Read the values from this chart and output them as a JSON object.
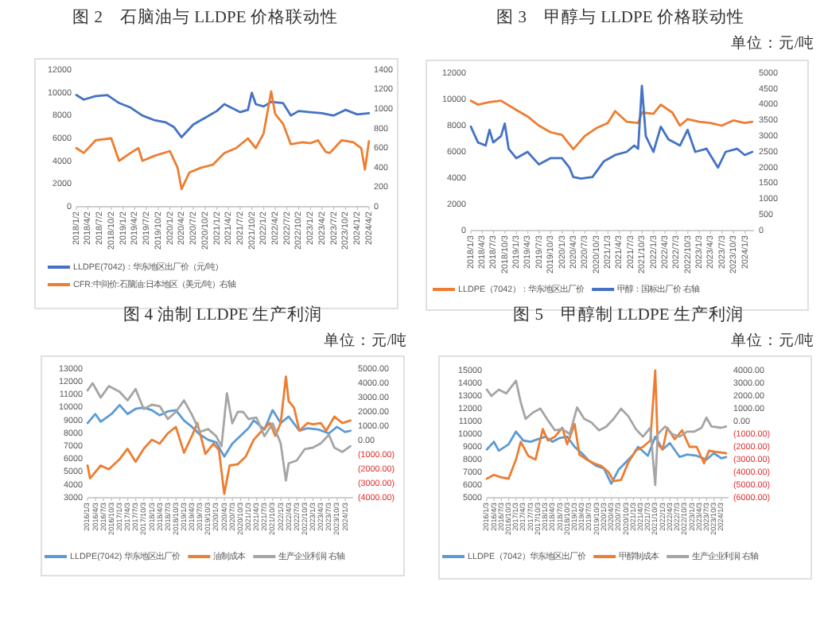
{
  "chart_data": [
    {
      "type": "line",
      "title": "图 2　石脑油与 LLDPE 价格联动性",
      "legend": "bottom",
      "xlim": [
        "2018-01-02",
        "2024-04-02"
      ],
      "ylim": [
        0,
        12000
      ],
      "yticks": [
        0,
        2000,
        4000,
        6000,
        8000,
        10000,
        12000
      ],
      "y2lim": [
        0,
        1400
      ],
      "y2ticks": [
        0,
        200,
        400,
        600,
        800,
        1000,
        1200,
        1400
      ],
      "xticks": [
        {
          "value": "2018-01-02",
          "label": "2018/1/2"
        },
        {
          "value": "2018-04-02",
          "label": "2018/4/2"
        },
        {
          "value": "2018-07-02",
          "label": "2018/7/2"
        },
        {
          "value": "2018-10-02",
          "label": "2018/10/2"
        },
        {
          "value": "2019-01-02",
          "label": "2019/1/2"
        },
        {
          "value": "2019-04-02",
          "label": "2019/4/2"
        },
        {
          "value": "2019-07-02",
          "label": "2019/7/2"
        },
        {
          "value": "2019-10-02",
          "label": "2019/10/2"
        },
        {
          "value": "2020-01-02",
          "label": "2020/1/2"
        },
        {
          "value": "2020-04-02",
          "label": "2020/4/2"
        },
        {
          "value": "2020-07-02",
          "label": "2020/7/2"
        },
        {
          "value": "2020-10-02",
          "label": "2020/10/2"
        },
        {
          "value": "2021-01-02",
          "label": "2021/1/2"
        },
        {
          "value": "2021-04-02",
          "label": "2021/4/2"
        },
        {
          "value": "2021-07-02",
          "label": "2021/7/2"
        },
        {
          "value": "2021-10-02",
          "label": "2021/10/2"
        },
        {
          "value": "2022-01-02",
          "label": "2022/1/2"
        },
        {
          "value": "2022-04-02",
          "label": "2022/4/2"
        },
        {
          "value": "2022-07-02",
          "label": "2022/7/2"
        },
        {
          "value": "2022-10-02",
          "label": "2022/10/2"
        },
        {
          "value": "2023-01-02",
          "label": "2023/1/2"
        },
        {
          "value": "2023-04-02",
          "label": "2023/4/2"
        },
        {
          "value": "2023-07-02",
          "label": "2023/7/2"
        },
        {
          "value": "2023-10-02",
          "label": "2023/10/2"
        },
        {
          "value": "2024-01-02",
          "label": "2024/1/2"
        },
        {
          "value": "2024-04-02",
          "label": "2024/4/2"
        }
      ],
      "series": [
        {
          "name": "LLDPE(7042)：华东地区出厂价（元/吨）",
          "color": "#4472c4",
          "x": [
            "2018-01-02",
            "2018-03",
            "2018-06",
            "2018-09",
            "2018-12",
            "2019-03",
            "2019-06",
            "2019-09",
            "2019-12",
            "2020-02",
            "2020-04",
            "2020-07",
            "2020-10",
            "2021-01",
            "2021-03",
            "2021-07",
            "2021-09",
            "2021-10",
            "2021-11",
            "2022-01",
            "2022-03",
            "2022-06",
            "2022-08",
            "2022-10",
            "2023-01",
            "2023-04",
            "2023-07",
            "2023-10",
            "2024-01",
            "2024-04"
          ],
          "values": [
            9800,
            9400,
            9700,
            9800,
            9100,
            8700,
            8000,
            7600,
            7400,
            7000,
            6100,
            7200,
            7800,
            8400,
            9000,
            8300,
            8500,
            10000,
            9000,
            8800,
            9200,
            9100,
            8000,
            8400,
            8300,
            8200,
            8000,
            8500,
            8100,
            8200
          ]
        },
        {
          "name": "CFR:中间价:石脑油:日本地区（美元/吨）右轴",
          "color": "#ed7d31",
          "axis": "y2",
          "x": [
            "2018-01-02",
            "2018-03",
            "2018-06",
            "2018-10",
            "2018-12",
            "2019-03",
            "2019-05",
            "2019-06",
            "2019-09",
            "2020-01",
            "2020-03",
            "2020-04",
            "2020-06",
            "2020-09",
            "2020-12",
            "2021-03",
            "2021-06",
            "2021-09",
            "2021-11",
            "2022-01",
            "2022-03",
            "2022-04",
            "2022-06",
            "2022-08",
            "2022-11",
            "2023-01",
            "2023-03",
            "2023-05",
            "2023-06",
            "2023-09",
            "2023-12",
            "2024-02",
            "2024-03",
            "2024-04"
          ],
          "values": [
            600,
            550,
            680,
            700,
            470,
            550,
            600,
            470,
            520,
            570,
            400,
            180,
            350,
            400,
            430,
            550,
            600,
            700,
            600,
            750,
            1180,
            950,
            850,
            640,
            660,
            650,
            680,
            560,
            550,
            680,
            660,
            600,
            380,
            670
          ]
        }
      ]
    },
    {
      "type": "line",
      "title": "图 3　甲醇与 LLDPE 价格联动性",
      "subtitle": "单位：元/吨",
      "legend": "bottom",
      "xlim": [
        "2018-01-03",
        "2024-03-15"
      ],
      "ylim": [
        0,
        12000
      ],
      "yticks": [
        0,
        2000,
        4000,
        6000,
        8000,
        10000,
        12000
      ],
      "y2lim": [
        0,
        5000
      ],
      "y2ticks": [
        0,
        500,
        1000,
        1500,
        2000,
        2500,
        3000,
        3500,
        4000,
        4500,
        5000
      ],
      "xticks": [
        {
          "value": "2018-01-03",
          "label": "2018/1/3"
        },
        {
          "value": "2018-04-03",
          "label": "2018/4/3"
        },
        {
          "value": "2018-07-03",
          "label": "2018/7/3"
        },
        {
          "value": "2018-10-03",
          "label": "2018/10/3"
        },
        {
          "value": "2019-01-03",
          "label": "2019/1/3"
        },
        {
          "value": "2019-04-03",
          "label": "2019/4/3"
        },
        {
          "value": "2019-07-03",
          "label": "2019/7/3"
        },
        {
          "value": "2019-10-03",
          "label": "2019/10/3"
        },
        {
          "value": "2020-01-03",
          "label": "2020/1/3"
        },
        {
          "value": "2020-04-03",
          "label": "2020/4/3"
        },
        {
          "value": "2020-07-03",
          "label": "2020/7/3"
        },
        {
          "value": "2020-10-03",
          "label": "2020/10/3"
        },
        {
          "value": "2021-01-03",
          "label": "2021/1/3"
        },
        {
          "value": "2021-04-03",
          "label": "2021/4/3"
        },
        {
          "value": "2021-07-03",
          "label": "2021/7/3"
        },
        {
          "value": "2021-10-03",
          "label": "2021/10/3"
        },
        {
          "value": "2022-01-03",
          "label": "2022/1/3"
        },
        {
          "value": "2022-04-03",
          "label": "2022/4/3"
        },
        {
          "value": "2022-07-03",
          "label": "2022/7/3"
        },
        {
          "value": "2022-10-03",
          "label": "2022/10/3"
        },
        {
          "value": "2023-01-03",
          "label": "2023/1/3"
        },
        {
          "value": "2023-04-03",
          "label": "2023/4/3"
        },
        {
          "value": "2023-07-03",
          "label": "2023/7/3"
        },
        {
          "value": "2023-10-03",
          "label": "2023/10/3"
        },
        {
          "value": "2024-01-03",
          "label": "2024/1/3"
        }
      ],
      "series": [
        {
          "name": "LLDPE（7042）：华东地区出厂价",
          "color": "#ed7d31",
          "x": [
            "2018-01-03",
            "2018-03",
            "2018-06",
            "2018-09",
            "2019-01",
            "2019-04",
            "2019-07",
            "2019-10",
            "2020-01",
            "2020-04",
            "2020-07",
            "2020-10",
            "2021-01",
            "2021-03",
            "2021-06",
            "2021-09",
            "2021-10",
            "2022-01",
            "2022-03",
            "2022-06",
            "2022-08",
            "2022-10",
            "2023-01",
            "2023-04",
            "2023-07",
            "2023-10",
            "2024-01",
            "2024-03"
          ],
          "values": [
            9900,
            9600,
            9800,
            9900,
            9200,
            8700,
            8000,
            7500,
            7300,
            6200,
            7200,
            7800,
            8200,
            9100,
            8300,
            8200,
            9000,
            8900,
            9600,
            9000,
            8000,
            8500,
            8300,
            8200,
            8000,
            8400,
            8200,
            8300
          ]
        },
        {
          "name": "甲醇：国标出厂价 右轴",
          "color": "#4472c4",
          "axis": "y2",
          "x": [
            "2018-01-03",
            "2018-03",
            "2018-05",
            "2018-06",
            "2018-07",
            "2018-09",
            "2018-10",
            "2018-11",
            "2019-01",
            "2019-04",
            "2019-07",
            "2019-10",
            "2020-01",
            "2020-03",
            "2020-04",
            "2020-06",
            "2020-09",
            "2020-12",
            "2021-03",
            "2021-06",
            "2021-08",
            "2021-09",
            "2021-10",
            "2021-11",
            "2022-01",
            "2022-03",
            "2022-05",
            "2022-08",
            "2022-10",
            "2022-12",
            "2023-03",
            "2023-06",
            "2023-08",
            "2023-11",
            "2024-01",
            "2024-03"
          ],
          "values": [
            3300,
            2800,
            2700,
            3200,
            2800,
            3000,
            3400,
            2600,
            2300,
            2500,
            2100,
            2300,
            2300,
            2000,
            1700,
            1650,
            1700,
            2200,
            2400,
            2500,
            2700,
            2600,
            4600,
            3000,
            2500,
            3300,
            2900,
            2700,
            3200,
            2500,
            2600,
            2000,
            2500,
            2600,
            2400,
            2500
          ]
        }
      ]
    },
    {
      "type": "line",
      "title": "图 4 油制 LLDPE 生产利润",
      "subtitle": "单位：元/吨",
      "legend": "bottom",
      "xlim": [
        "2016-01-03",
        "2024-04-01"
      ],
      "ylim": [
        3000,
        13000
      ],
      "yticks": [
        3000,
        4000,
        5000,
        6000,
        7000,
        8000,
        9000,
        10000,
        11000,
        12000,
        13000
      ],
      "y2lim": [
        -4000,
        5000
      ],
      "y2ticks": [
        {
          "value": -4000,
          "label": "(4000.00)"
        },
        {
          "value": -3000,
          "label": "(3000.00)"
        },
        {
          "value": -2000,
          "label": "(2000.00)"
        },
        {
          "value": -1000,
          "label": "(1000.00)"
        },
        {
          "value": 0,
          "label": "0.00"
        },
        {
          "value": 1000,
          "label": "1000.00"
        },
        {
          "value": 2000,
          "label": "2000.00"
        },
        {
          "value": 3000,
          "label": "3000.00"
        },
        {
          "value": 4000,
          "label": "4000.00"
        },
        {
          "value": 5000,
          "label": "5000.00"
        }
      ],
      "xticks": [
        {
          "value": "2016-01-03",
          "label": "2016/1/3"
        },
        {
          "value": "2016-04-03",
          "label": "2016/4/3"
        },
        {
          "value": "2016-07-03",
          "label": "2016/7/3"
        },
        {
          "value": "2016-10-03",
          "label": "2016/10/3"
        },
        {
          "value": "2017-01-03",
          "label": "2017/1/3"
        },
        {
          "value": "2017-04-03",
          "label": "2017/4/3"
        },
        {
          "value": "2017-07-03",
          "label": "2017/7/3"
        },
        {
          "value": "2017-10-03",
          "label": "2017/10/3"
        },
        {
          "value": "2018-01-03",
          "label": "2018/1/3"
        },
        {
          "value": "2018-04-03",
          "label": "2018/4/3"
        },
        {
          "value": "2018-07-03",
          "label": "2018/7/3"
        },
        {
          "value": "2018-10-03",
          "label": "2018/10/3"
        },
        {
          "value": "2019-01-03",
          "label": "2019/1/3"
        },
        {
          "value": "2019-04-03",
          "label": "2019/4/3"
        },
        {
          "value": "2019-07-03",
          "label": "2019/7/3"
        },
        {
          "value": "2019-10-03",
          "label": "2019/10/3"
        },
        {
          "value": "2020-01-03",
          "label": "2020/1/3"
        },
        {
          "value": "2020-04-03",
          "label": "2020/4/3"
        },
        {
          "value": "2020-07-03",
          "label": "2020/7/3"
        },
        {
          "value": "2020-10-03",
          "label": "2020/10/3"
        },
        {
          "value": "2021-01-03",
          "label": "2021/1/3"
        },
        {
          "value": "2021-04-03",
          "label": "2021/4/3"
        },
        {
          "value": "2021-07-03",
          "label": "2021/7/3"
        },
        {
          "value": "2021-10-03",
          "label": "2021/10/3"
        },
        {
          "value": "2022-01-03",
          "label": "2022/1/3"
        },
        {
          "value": "2022-04-03",
          "label": "2022/4/3"
        },
        {
          "value": "2022-07-03",
          "label": "2022/7/3"
        },
        {
          "value": "2022-10-03",
          "label": "2022/10/3"
        },
        {
          "value": "2023-01-03",
          "label": "2023/1/3"
        },
        {
          "value": "2023-04-03",
          "label": "2023/4/3"
        },
        {
          "value": "2023-07-03",
          "label": "2023/7/3"
        },
        {
          "value": "2023-10-03",
          "label": "2023/10/3"
        },
        {
          "value": "2024-01-03",
          "label": "2024/1/3"
        }
      ],
      "series": [
        {
          "name": "LLDPE(7042) 华东地区出厂价",
          "color": "#5b9bd5",
          "x": [
            "2016-01-04",
            "2016-04",
            "2016-06",
            "2016-10",
            "2017-01",
            "2017-04",
            "2017-07",
            "2017-10",
            "2018-01",
            "2018-04",
            "2018-07",
            "2018-10",
            "2019-01",
            "2019-04",
            "2019-07",
            "2019-10",
            "2020-01",
            "2020-04",
            "2020-07",
            "2020-10",
            "2021-01",
            "2021-03",
            "2021-07",
            "2021-10",
            "2022-01",
            "2022-04",
            "2022-08",
            "2022-11",
            "2023-03",
            "2023-07",
            "2023-10",
            "2024-01",
            "2024-03"
          ],
          "values": [
            8800,
            9500,
            8900,
            9500,
            10200,
            9500,
            9900,
            10000,
            9800,
            9400,
            9700,
            9800,
            9000,
            8500,
            7900,
            7500,
            7300,
            6200,
            7200,
            7800,
            8400,
            9000,
            8300,
            9800,
            8800,
            9300,
            8200,
            8400,
            8300,
            8000,
            8500,
            8100,
            8200
          ]
        },
        {
          "name": "油制成本",
          "color": "#ed7d31",
          "x": [
            "2016-01-04",
            "2016-02",
            "2016-06",
            "2016-09",
            "2017-01",
            "2017-04",
            "2017-07",
            "2017-10",
            "2018-01",
            "2018-04",
            "2018-07",
            "2018-10",
            "2019-01",
            "2019-04",
            "2019-06",
            "2019-09",
            "2019-12",
            "2020-02",
            "2020-04",
            "2020-06",
            "2020-09",
            "2020-12",
            "2021-03",
            "2021-06",
            "2021-09",
            "2021-11",
            "2022-01",
            "2022-03",
            "2022-04",
            "2022-06",
            "2022-08",
            "2022-11",
            "2023-01",
            "2023-04",
            "2023-06",
            "2023-09",
            "2023-12",
            "2024-03"
          ],
          "values": [
            5500,
            4500,
            5500,
            5200,
            6000,
            6800,
            5800,
            6800,
            7500,
            7200,
            8000,
            8500,
            6500,
            7800,
            8800,
            6400,
            7200,
            6700,
            3300,
            5500,
            5600,
            6200,
            7500,
            8200,
            8800,
            7800,
            8800,
            12400,
            10500,
            10000,
            8200,
            8800,
            8700,
            8800,
            8200,
            9300,
            8800,
            9000
          ]
        },
        {
          "name": "生产企业利润 右轴",
          "color": "#a5a5a5",
          "axis": "y2",
          "x": [
            "2016-01-04",
            "2016-03",
            "2016-06",
            "2016-09",
            "2017-01",
            "2017-04",
            "2017-07",
            "2017-10",
            "2018-01",
            "2018-04",
            "2018-07",
            "2018-10",
            "2019-01",
            "2019-04",
            "2019-07",
            "2019-10",
            "2020-01",
            "2020-03",
            "2020-05",
            "2020-07",
            "2020-09",
            "2020-11",
            "2021-01",
            "2021-04",
            "2021-07",
            "2021-10",
            "2022-01",
            "2022-03",
            "2022-04",
            "2022-07",
            "2022-10",
            "2023-01",
            "2023-04",
            "2023-07",
            "2023-09",
            "2023-12",
            "2024-03"
          ],
          "values": [
            3500,
            4000,
            3000,
            3800,
            3400,
            2800,
            3600,
            2200,
            2500,
            2400,
            1500,
            2000,
            2800,
            1800,
            600,
            800,
            300,
            -400,
            3300,
            1200,
            2000,
            2000,
            1500,
            1600,
            300,
            1200,
            -200,
            -2800,
            -1600,
            -1400,
            -600,
            -500,
            -200,
            400,
            -500,
            -800,
            -400
          ]
        }
      ]
    },
    {
      "type": "line",
      "title": "图 5　甲醇制 LLDPE 生产利润",
      "subtitle": "单位：元/吨",
      "legend": "bottom",
      "xlim": [
        "2016-01-03",
        "2024-04-01"
      ],
      "ylim": [
        5000,
        15000
      ],
      "yticks": [
        5000,
        6000,
        7000,
        8000,
        9000,
        10000,
        11000,
        12000,
        13000,
        14000,
        15000
      ],
      "y2lim": [
        -6000,
        4000
      ],
      "y2ticks": [
        {
          "value": -6000,
          "label": "(6000.00)"
        },
        {
          "value": -5000,
          "label": "(5000.00)"
        },
        {
          "value": -4000,
          "label": "(4000.00)"
        },
        {
          "value": -3000,
          "label": "(3000.00)"
        },
        {
          "value": -2000,
          "label": "(2000.00)"
        },
        {
          "value": -1000,
          "label": "(1000.00)"
        },
        {
          "value": 0,
          "label": "0.00"
        },
        {
          "value": 1000,
          "label": "1000.00"
        },
        {
          "value": 2000,
          "label": "2000.00"
        },
        {
          "value": 3000,
          "label": "3000.00"
        },
        {
          "value": 4000,
          "label": "4000.00"
        }
      ],
      "xticks": [
        {
          "value": "2016-01-03",
          "label": "2016/1/3"
        },
        {
          "value": "2016-04-03",
          "label": "2016/4/3"
        },
        {
          "value": "2016-07-03",
          "label": "2016/7/3"
        },
        {
          "value": "2016-10-03",
          "label": "2016/10/3"
        },
        {
          "value": "2017-01-03",
          "label": "2017/1/3"
        },
        {
          "value": "2017-04-03",
          "label": "2017/4/3"
        },
        {
          "value": "2017-07-03",
          "label": "2017/7/3"
        },
        {
          "value": "2017-10-03",
          "label": "2017/10/3"
        },
        {
          "value": "2018-01-03",
          "label": "2018/1/3"
        },
        {
          "value": "2018-04-03",
          "label": "2018/4/3"
        },
        {
          "value": "2018-07-03",
          "label": "2018/7/3"
        },
        {
          "value": "2018-10-03",
          "label": "2018/10/3"
        },
        {
          "value": "2019-01-03",
          "label": "2019/1/3"
        },
        {
          "value": "2019-04-03",
          "label": "2019/4/3"
        },
        {
          "value": "2019-07-03",
          "label": "2019/7/3"
        },
        {
          "value": "2019-10-03",
          "label": "2019/10/3"
        },
        {
          "value": "2020-01-03",
          "label": "2020/1/3"
        },
        {
          "value": "2020-04-03",
          "label": "2020/4/3"
        },
        {
          "value": "2020-07-03",
          "label": "2020/7/3"
        },
        {
          "value": "2020-10-03",
          "label": "2020/10/3"
        },
        {
          "value": "2021-01-03",
          "label": "2021/1/3"
        },
        {
          "value": "2021-04-03",
          "label": "2021/4/3"
        },
        {
          "value": "2021-07-03",
          "label": "2021/7/3"
        },
        {
          "value": "2021-10-03",
          "label": "2021/10/3"
        },
        {
          "value": "2022-01-03",
          "label": "2022/1/3"
        },
        {
          "value": "2022-04-03",
          "label": "2022/4/3"
        },
        {
          "value": "2022-07-03",
          "label": "2022/7/3"
        },
        {
          "value": "2022-10-03",
          "label": "2022/10/3"
        },
        {
          "value": "2023-01-03",
          "label": "2023/1/3"
        },
        {
          "value": "2023-04-03",
          "label": "2023/4/3"
        },
        {
          "value": "2023-07-03",
          "label": "2023/7/3"
        },
        {
          "value": "2023-10-03",
          "label": "2023/10/3"
        },
        {
          "value": "2024-01-03",
          "label": "2024/1/3"
        }
      ],
      "series": [
        {
          "name": "LLDPE（7042）华东地区出厂价",
          "color": "#5b9bd5",
          "x": [
            "2016-01-04",
            "2016-04",
            "2016-06",
            "2016-10",
            "2017-01",
            "2017-04",
            "2017-07",
            "2017-10",
            "2018-01",
            "2018-04",
            "2018-07",
            "2018-10",
            "2019-01",
            "2019-04",
            "2019-07",
            "2019-10",
            "2020-01",
            "2020-04",
            "2020-07",
            "2020-10",
            "2021-01",
            "2021-03",
            "2021-07",
            "2021-10",
            "2022-01",
            "2022-04",
            "2022-08",
            "2022-11",
            "2023-03",
            "2023-07",
            "2023-10",
            "2024-01",
            "2024-03"
          ],
          "values": [
            8800,
            9400,
            8700,
            9200,
            10200,
            9500,
            9400,
            9600,
            9800,
            9400,
            9700,
            9800,
            9000,
            8500,
            7900,
            7500,
            7300,
            6100,
            7200,
            7800,
            8400,
            9000,
            8300,
            9800,
            8800,
            9300,
            8200,
            8400,
            8300,
            8000,
            8500,
            8100,
            8200
          ]
        },
        {
          "name": "甲醇制成本",
          "color": "#ed7d31",
          "x": [
            "2016-01-04",
            "2016-04",
            "2016-07",
            "2016-10",
            "2017-01",
            "2017-03",
            "2017-06",
            "2017-09",
            "2017-12",
            "2018-02",
            "2018-05",
            "2018-08",
            "2018-10",
            "2019-01",
            "2019-03",
            "2019-06",
            "2019-09",
            "2019-12",
            "2020-03",
            "2020-05",
            "2020-08",
            "2020-11",
            "2021-02",
            "2021-05",
            "2021-08",
            "2021-10",
            "2021-11",
            "2022-01",
            "2022-03",
            "2022-06",
            "2022-09",
            "2022-12",
            "2023-03",
            "2023-06",
            "2023-08",
            "2023-11",
            "2024-03"
          ],
          "values": [
            6500,
            6800,
            6600,
            6500,
            8000,
            9400,
            8300,
            8000,
            10400,
            9500,
            9800,
            10500,
            9200,
            10800,
            8400,
            8000,
            7700,
            7500,
            7000,
            6300,
            6400,
            7800,
            8700,
            9000,
            9500,
            15000,
            9200,
            8800,
            10500,
            9600,
            10300,
            9000,
            9000,
            7700,
            8700,
            8600,
            8500
          ]
        },
        {
          "name": "生产企业利润 右轴",
          "color": "#a5a5a5",
          "axis": "y2",
          "x": [
            "2016-01-04",
            "2016-03",
            "2016-06",
            "2016-09",
            "2017-01",
            "2017-03",
            "2017-05",
            "2017-08",
            "2017-11",
            "2018-02",
            "2018-05",
            "2018-08",
            "2018-11",
            "2019-02",
            "2019-05",
            "2019-08",
            "2019-11",
            "2020-02",
            "2020-05",
            "2020-08",
            "2020-11",
            "2021-02",
            "2021-05",
            "2021-08",
            "2021-10",
            "2021-11",
            "2022-02",
            "2022-05",
            "2022-08",
            "2022-11",
            "2023-02",
            "2023-05",
            "2023-07",
            "2023-09",
            "2024-01",
            "2024-03"
          ],
          "values": [
            2500,
            2000,
            2500,
            2200,
            3200,
            1500,
            200,
            700,
            1000,
            100,
            -700,
            -600,
            -1000,
            1100,
            200,
            -100,
            -700,
            -400,
            200,
            1000,
            400,
            -600,
            -1200,
            -500,
            -5000,
            -1000,
            -400,
            -1000,
            -1200,
            -800,
            -800,
            -500,
            300,
            -400,
            -500,
            -400
          ]
        }
      ]
    }
  ]
}
